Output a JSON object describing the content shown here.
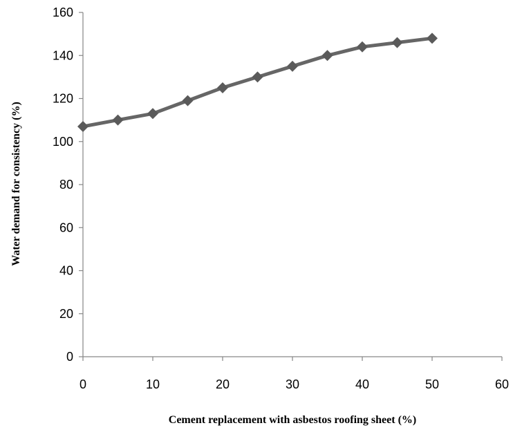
{
  "chart_data": {
    "type": "line",
    "title": "",
    "xlabel": "Cement replacement with asbestos roofing sheet (%)",
    "ylabel": "Water demand for consistency (%)",
    "xlim": [
      0,
      60
    ],
    "ylim": [
      0,
      160
    ],
    "xticks": [
      0,
      10,
      20,
      30,
      40,
      50,
      60
    ],
    "yticks": [
      0,
      20,
      40,
      60,
      80,
      100,
      120,
      140,
      160
    ],
    "grid": false,
    "legend": "none",
    "series": [
      {
        "x": [
          0,
          5,
          10,
          15,
          20,
          25,
          30,
          35,
          40,
          45,
          50
        ],
        "y": [
          107,
          110,
          113,
          119,
          125,
          130,
          135,
          140,
          144,
          146,
          148
        ],
        "color": "#666666",
        "marker": "diamond"
      }
    ]
  }
}
